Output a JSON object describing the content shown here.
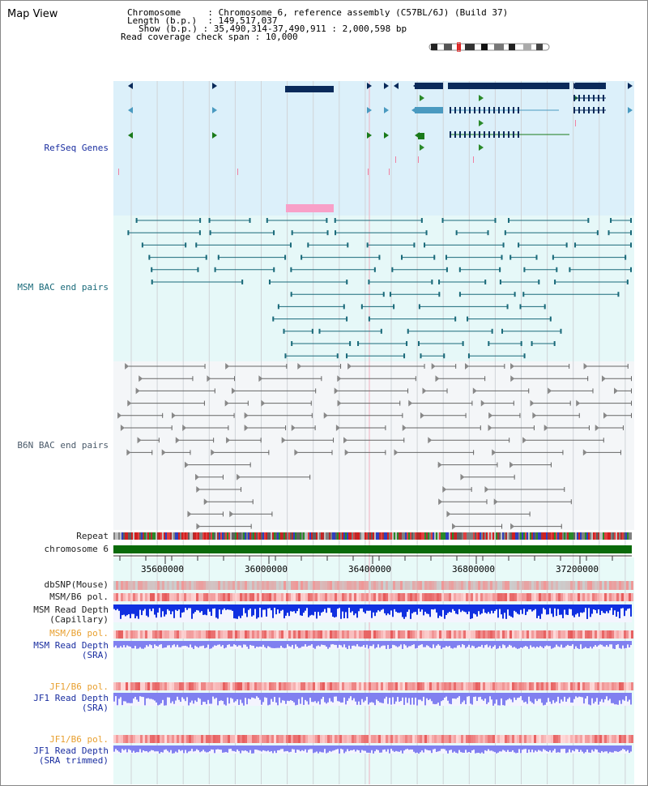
{
  "title": "Map View",
  "info": {
    "chromosome_label": "Chromosome",
    "chromosome_value": "Chromosome 6, reference assembly (C57BL/6J) (Build 37)",
    "length_label": "Length (b.p.)",
    "length_value": "149,517,037",
    "show_label": "Show (b.p.)",
    "show_value": "35,490,314-37,490,911 : 2,000,598 bp",
    "coverage_label": "Read coverage check span",
    "coverage_value": "10,000"
  },
  "tracks": {
    "refseq": "RefSeq Genes",
    "msm_bac": "MSM BAC end pairs",
    "b6n_bac": "B6N BAC end pairs",
    "repeat": "Repeat",
    "chromosome": "chromosome 6",
    "dbsnp": "dbSNP(Mouse)",
    "msm_b6_pol_1": "MSM/B6 pol.",
    "msm_read_depth_cap": "MSM Read Depth\n(Capillary)",
    "msm_b6_pol_2": "MSM/B6 pol.",
    "msm_read_depth_sra": "MSM Read Depth\n(SRA)",
    "jf1_b6_pol_1": "JF1/B6 pol.",
    "jf1_read_depth_sra": "JF1 Read Depth\n(SRA)",
    "jf1_b6_pol_2": "JF1/B6 pol.",
    "jf1_read_depth_trim": "JF1 Read Depth\n(SRA trimmed)"
  },
  "axis_ticks": [
    "35600000",
    "36000000",
    "36400000",
    "36800000",
    "37200000"
  ],
  "colors": {
    "refseq_bg": "#dcf0fa",
    "msm_bg": "#e6f8f8",
    "b6n_bg": "#f2f4f6",
    "lower_bg": "#e8faf8",
    "gene_dark": "#0a2a5a",
    "gene_light": "#4a9ac0",
    "gene_green": "#1a7a1a",
    "msm_line": "#1a6a7a",
    "b6n_line": "#666666",
    "chrom_green": "#0a6a0a",
    "pol_red": "#e05050",
    "depth_blue": "#1030e0",
    "depth_light": "#8080f0"
  }
}
